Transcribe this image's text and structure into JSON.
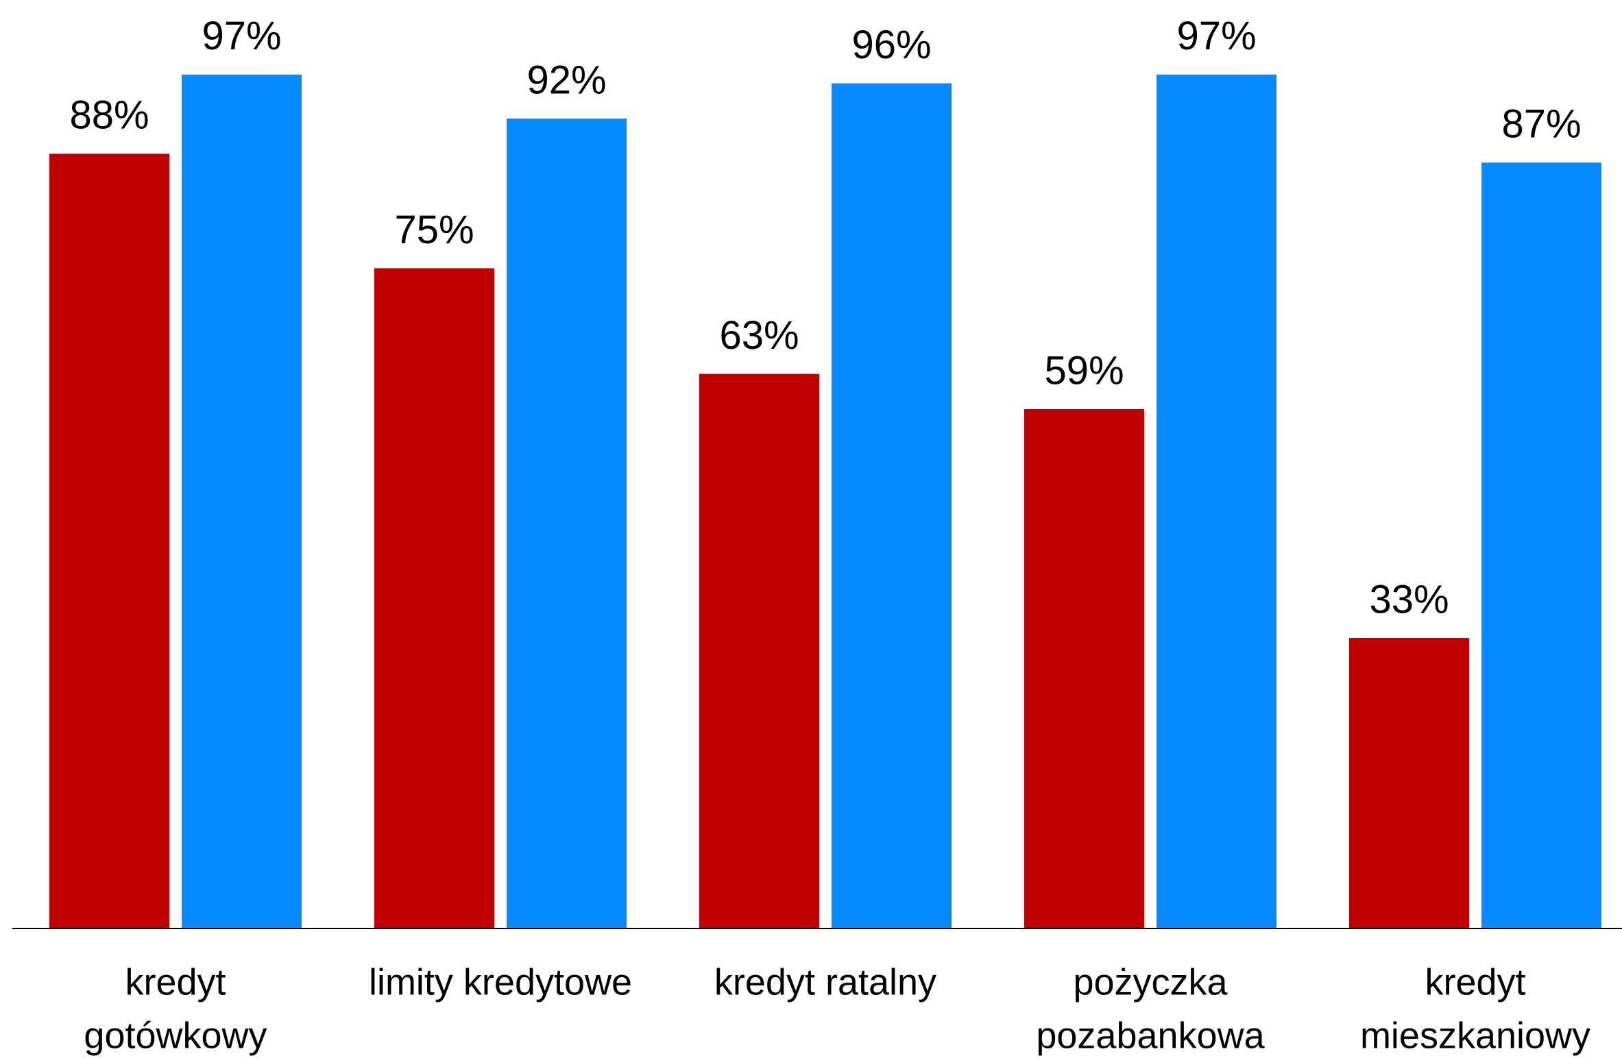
{
  "chart_data": {
    "type": "bar",
    "categories": [
      [
        "kredyt",
        "gotówkowy"
      ],
      [
        "limity kredytowe"
      ],
      [
        "kredyt ratalny"
      ],
      [
        "pożyczka",
        "pozabankowa"
      ],
      [
        "kredyt",
        "mieszkaniowy"
      ]
    ],
    "series": [
      {
        "color": "#c00000",
        "values": [
          88,
          75,
          63,
          59,
          33
        ],
        "value_labels": [
          "88%",
          "75%",
          "63%",
          "59%",
          "33%"
        ]
      },
      {
        "color": "#058bff",
        "values": [
          97,
          92,
          96,
          97,
          87
        ],
        "value_labels": [
          "97%",
          "92%",
          "96%",
          "97%",
          "87%"
        ]
      }
    ],
    "ylim": [
      0,
      105
    ]
  }
}
